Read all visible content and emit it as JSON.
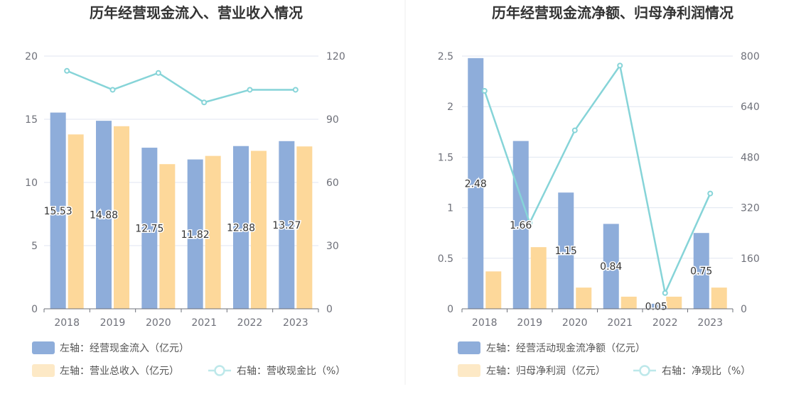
{
  "charts": [
    {
      "title": "历年经营现金流入、营业收入情况",
      "categories": [
        "2018",
        "2019",
        "2020",
        "2021",
        "2022",
        "2023"
      ],
      "left_axis": {
        "min": 0,
        "max": 20,
        "ticks": [
          "0",
          "5",
          "10",
          "15",
          "20"
        ]
      },
      "right_axis": {
        "min": 0,
        "max": 120,
        "ticks": [
          "0",
          "30",
          "60",
          "90",
          "120"
        ]
      },
      "series": [
        {
          "name": "左轴：经营现金流入（亿元）",
          "type": "bar",
          "axis": "left",
          "color": "#8eadda",
          "values": [
            15.53,
            14.88,
            12.75,
            11.82,
            12.88,
            13.27
          ],
          "labels": [
            "15.53",
            "14.88",
            "12.75",
            "11.82",
            "12.88",
            "13.27"
          ]
        },
        {
          "name": "左轴：营业总收入（亿元）",
          "type": "bar",
          "axis": "left",
          "color": "#fdd89a",
          "values": [
            13.8,
            14.45,
            11.45,
            12.1,
            12.5,
            12.85
          ]
        },
        {
          "name": "右轴：营收现金比（%）",
          "type": "line",
          "axis": "right",
          "color": "#86d4d8",
          "values": [
            113,
            104,
            112,
            98,
            104,
            104
          ]
        }
      ]
    },
    {
      "title": "历年经营现金流净额、归母净利润情况",
      "categories": [
        "2018",
        "2019",
        "2020",
        "2021",
        "2022",
        "2023"
      ],
      "left_axis": {
        "min": 0,
        "max": 2.5,
        "ticks": [
          "0",
          "0.5",
          "1",
          "1.5",
          "2",
          "2.5"
        ]
      },
      "right_axis": {
        "min": 0,
        "max": 800,
        "ticks": [
          "0",
          "160",
          "320",
          "480",
          "640",
          "800"
        ]
      },
      "series": [
        {
          "name": "左轴：经营活动现金流净额（亿元）",
          "type": "bar",
          "axis": "left",
          "color": "#8eadda",
          "values": [
            2.48,
            1.66,
            1.15,
            0.84,
            0.05,
            0.75
          ],
          "labels": [
            "2.48",
            "1.66",
            "1.15",
            "0.84",
            "0.05",
            "0.75"
          ]
        },
        {
          "name": "左轴：归母净利润（亿元）",
          "type": "bar",
          "axis": "left",
          "color": "#fdd89a",
          "values": [
            0.37,
            0.61,
            0.21,
            0.12,
            0.12,
            0.21
          ]
        },
        {
          "name": "右轴：净现比（%）",
          "type": "line",
          "axis": "right",
          "color": "#86d4d8",
          "values": [
            690,
            272,
            565,
            770,
            50,
            365
          ]
        }
      ]
    }
  ]
}
